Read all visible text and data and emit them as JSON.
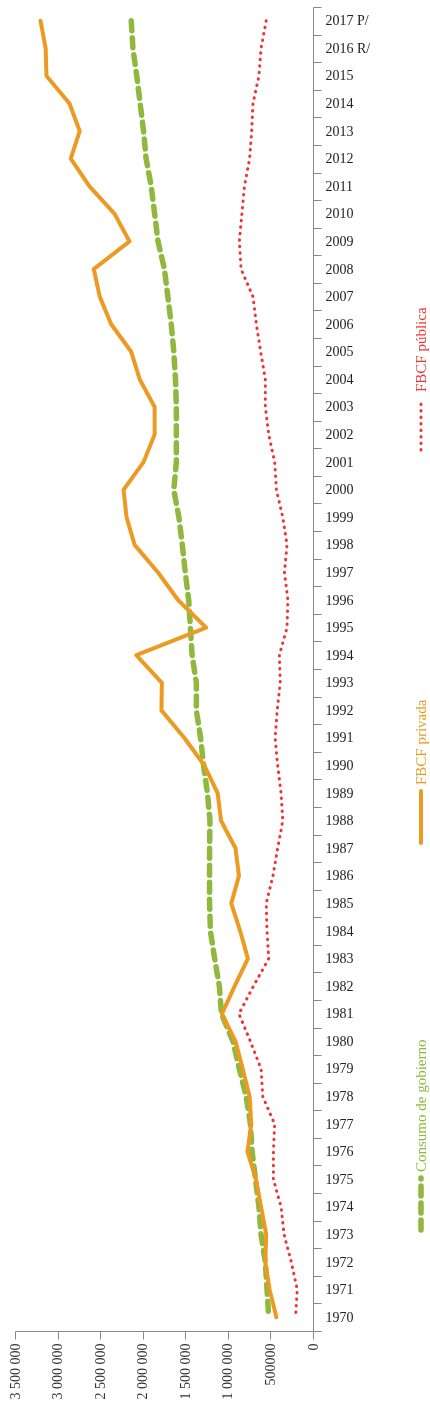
{
  "chart_data": {
    "type": "line",
    "orientation": "horizontal",
    "legend": "right",
    "categories": [
      "2017 P/",
      "2016 R/",
      "2015",
      "2014",
      "2013",
      "2012",
      "2011",
      "2010",
      "2009",
      "2008",
      "2007",
      "2006",
      "2005",
      "2004",
      "2003",
      "2002",
      "2001",
      "2000",
      "1999",
      "1998",
      "1997",
      "1996",
      "1995",
      "1994",
      "1993",
      "1992",
      "1991",
      "1990",
      "1989",
      "1988",
      "1987",
      "1986",
      "1985",
      "1984",
      "1983",
      "1982",
      "1981",
      "1980",
      "1979",
      "1978",
      "1977",
      "1976",
      "1975",
      "1974",
      "1973",
      "1972",
      "1971",
      "1970"
    ],
    "xlim": [
      3500000,
      0
    ],
    "xticks": [
      {
        "value": 3500000,
        "label": "3 500 000"
      },
      {
        "value": 3000000,
        "label": "3 000 000"
      },
      {
        "value": 2500000,
        "label": "2 500 000"
      },
      {
        "value": 2000000,
        "label": "2 000 000"
      },
      {
        "value": 1500000,
        "label": "1 500 000"
      },
      {
        "value": 1000000,
        "label": "1 000 000"
      },
      500000,
      0
    ],
    "series": [
      {
        "name": "Consumo de gobierno",
        "color": "#8fb83f",
        "line_style": "dashed",
        "values": [
          2135000,
          2115000,
          2070000,
          2030000,
          1990000,
          1960000,
          1900000,
          1860000,
          1820000,
          1745000,
          1705000,
          1665000,
          1635000,
          1615000,
          1605000,
          1605000,
          1605000,
          1635000,
          1575000,
          1535000,
          1500000,
          1460000,
          1440000,
          1420000,
          1370000,
          1370000,
          1320000,
          1285000,
          1240000,
          1210000,
          1215000,
          1215000,
          1215000,
          1205000,
          1155000,
          1100000,
          1075000,
          940000,
          865000,
          785000,
          735000,
          715000,
          675000,
          635000,
          610000,
          560000,
          540000,
          520000
        ]
      },
      {
        "name": "FBCF privada",
        "color": "#ec9a22",
        "line_style": "solid",
        "values": [
          3200000,
          3140000,
          3130000,
          2860000,
          2740000,
          2845000,
          2625000,
          2330000,
          2155000,
          2575000,
          2505000,
          2370000,
          2135000,
          2035000,
          1860000,
          1860000,
          1990000,
          2225000,
          2190000,
          2095000,
          1820000,
          1585000,
          1255000,
          2075000,
          1775000,
          1780000,
          1510000,
          1275000,
          1120000,
          1080000,
          910000,
          870000,
          960000,
          855000,
          765000,
          920000,
          1070000,
          910000,
          825000,
          745000,
          725000,
          770000,
          670000,
          610000,
          550000,
          560000,
          510000,
          430000
        ]
      },
      {
        "name": "FBCF pública",
        "color": "#ee3535",
        "line_style": "dotted",
        "values": [
          550000,
          610000,
          635000,
          705000,
          720000,
          745000,
          805000,
          835000,
          865000,
          845000,
          705000,
          665000,
          615000,
          560000,
          560000,
          520000,
          450000,
          430000,
          355000,
          305000,
          335000,
          295000,
          305000,
          395000,
          385000,
          420000,
          445000,
          415000,
          375000,
          355000,
          415000,
          470000,
          550000,
          540000,
          520000,
          700000,
          870000,
          735000,
          610000,
          590000,
          450000,
          465000,
          465000,
          375000,
          340000,
          255000,
          185000,
          205000
        ]
      }
    ]
  }
}
